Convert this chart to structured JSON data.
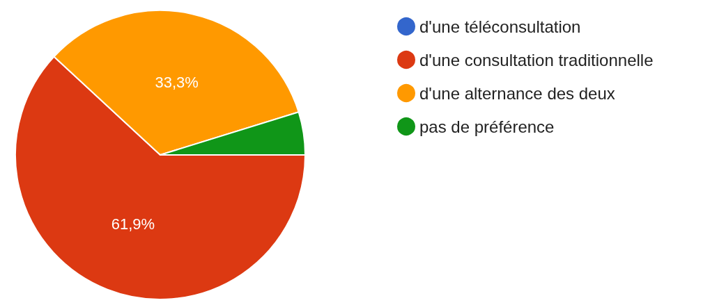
{
  "chart_data": {
    "type": "pie",
    "categories": [
      "d'une téléconsultation",
      "d'une consultation traditionnelle",
      "d'une alternance des deux",
      "pas de préférence"
    ],
    "values": [
      0,
      61.9,
      33.3,
      4.8
    ],
    "value_labels": [
      null,
      "61,9%",
      "33,3%",
      null
    ],
    "colors": [
      "#3366cc",
      "#dc3912",
      "#ff9900",
      "#109618"
    ],
    "legend": "top right"
  }
}
